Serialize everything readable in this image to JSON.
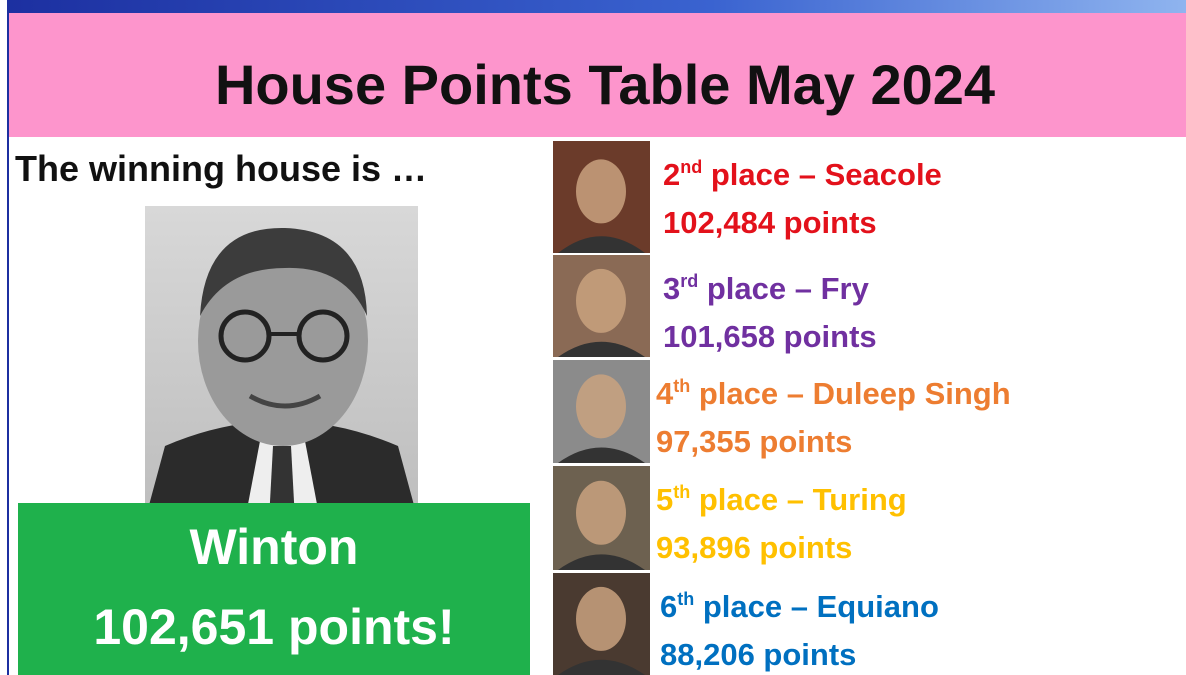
{
  "header": {
    "title": "House Points Table May 2024"
  },
  "winner": {
    "intro": "The winning house is …",
    "house": "Winton",
    "points": "102,651 points!"
  },
  "places": [
    {
      "number": "2",
      "suffix": "nd",
      "text": "place – Seacole",
      "points": "102,484 points",
      "color": "#e3111b"
    },
    {
      "number": "3",
      "suffix": "rd",
      "text": "place – Fry",
      "points": "101,658 points",
      "color": "#7030a0"
    },
    {
      "number": "4",
      "suffix": "th",
      "text": "place – Duleep Singh",
      "points": "97,355 points",
      "color": "#ed7d31"
    },
    {
      "number": "5",
      "suffix": "th",
      "text": "place – Turing",
      "points": "93,896 points",
      "color": "#ffc000"
    },
    {
      "number": "6",
      "suffix": "th",
      "text": "place – Equiano",
      "points": "88,206 points",
      "color": "#0070c0"
    }
  ]
}
